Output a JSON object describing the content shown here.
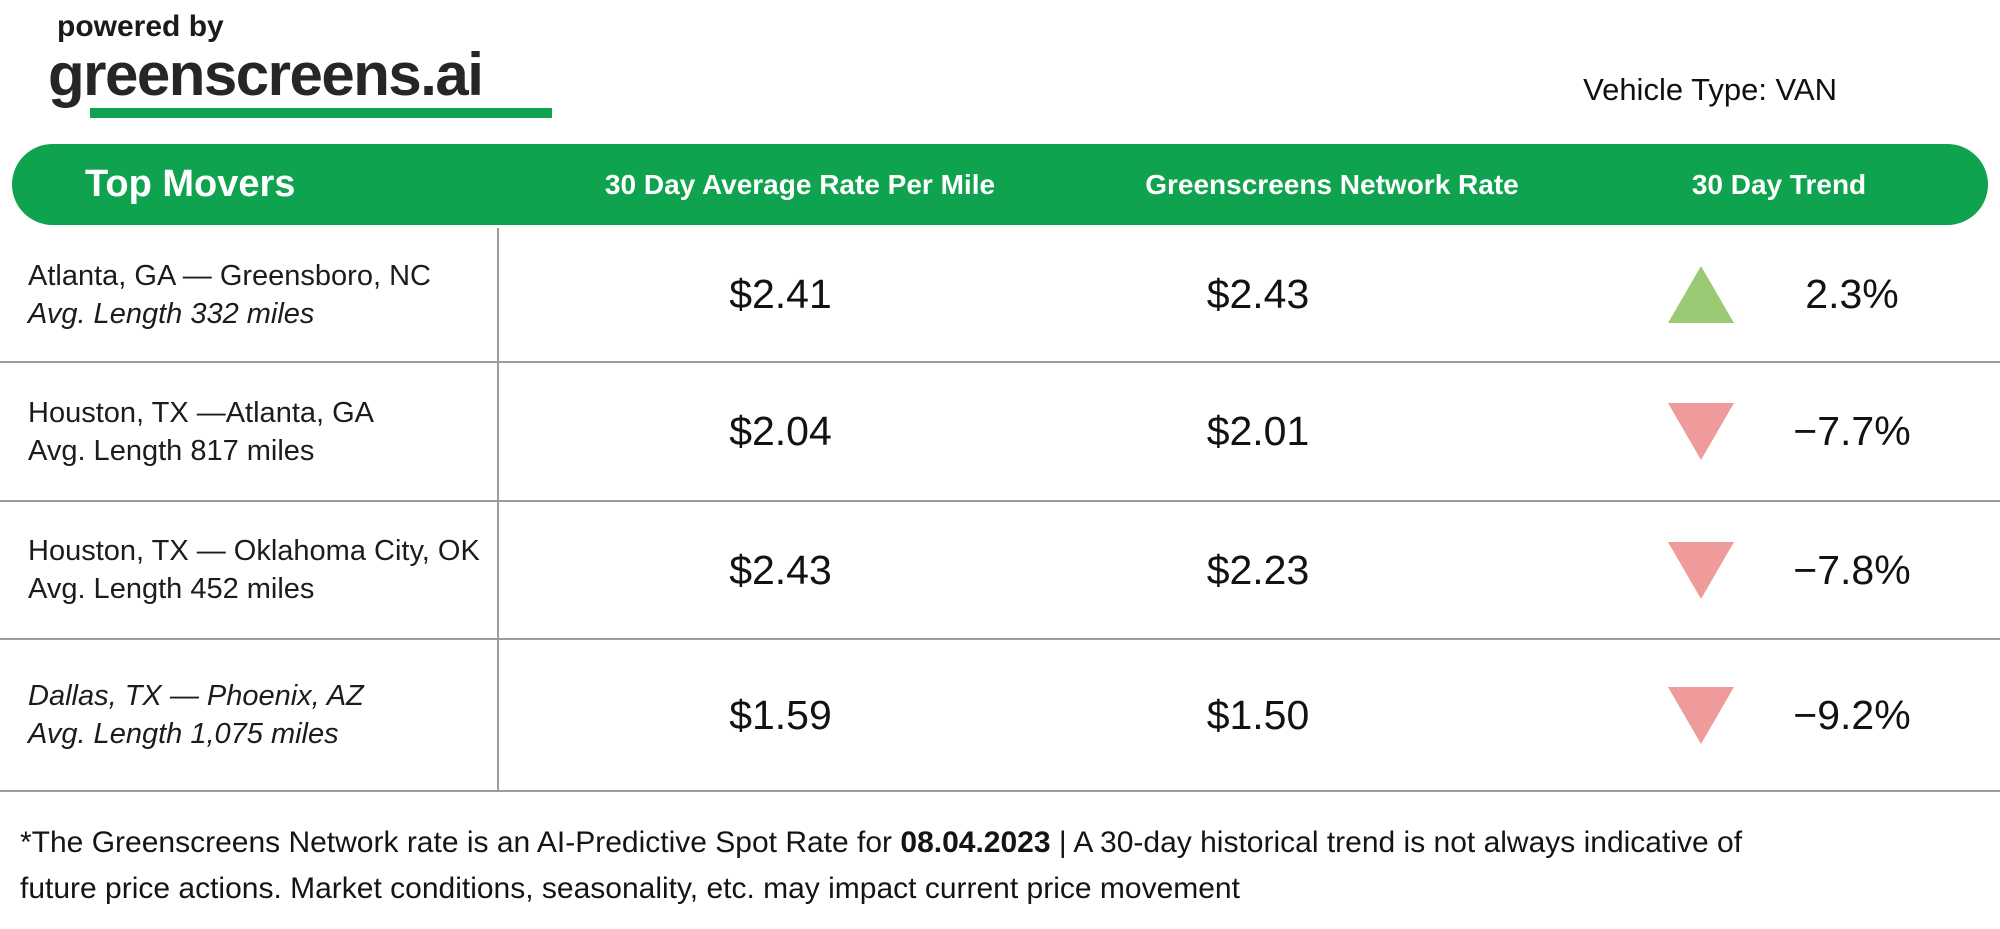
{
  "brand": {
    "powered_by": "powered by",
    "logo": "greenscreens.ai"
  },
  "header": {
    "vehicle_type": "Vehicle Type: VAN"
  },
  "table": {
    "headers": {
      "top_movers": "Top Movers",
      "avg_rate": "30 Day Average Rate Per Mile",
      "network_rate": "Greenscreens Network Rate",
      "trend": "30 Day Trend"
    },
    "rows": [
      {
        "lane": "Atlanta, GA — Greensboro, NC",
        "length": "Avg. Length 332 miles",
        "lane_italic": false,
        "length_italic": true,
        "avg_rate": "$2.41",
        "network_rate": "$2.43",
        "trend_direction": "up",
        "trend_value": "2.3%"
      },
      {
        "lane": "Houston, TX —Atlanta, GA",
        "length": "Avg. Length 817 miles",
        "lane_italic": false,
        "length_italic": false,
        "avg_rate": "$2.04",
        "network_rate": "$2.01",
        "trend_direction": "down",
        "trend_value": "−7.7%"
      },
      {
        "lane": "Houston, TX — Oklahoma City, OK",
        "length": "Avg. Length 452 miles",
        "lane_italic": false,
        "length_italic": false,
        "avg_rate": "$2.43",
        "network_rate": "$2.23",
        "trend_direction": "down",
        "trend_value": "−7.8%"
      },
      {
        "lane": "Dallas, TX — Phoenix, AZ",
        "length": "Avg. Length 1,075 miles",
        "lane_italic": true,
        "length_italic": true,
        "avg_rate": "$1.59",
        "network_rate": "$1.50",
        "trend_direction": "down",
        "trend_value": "−9.2%"
      }
    ]
  },
  "footer": {
    "line1_pre": "*The Greenscreens Network rate is an AI-Predictive Spot Rate for ",
    "date": "08.04.2023",
    "line1_post": " | A 30-day historical trend is not always indicative of",
    "line2": "future price actions. Market conditions, seasonality, etc. may impact current price movement"
  },
  "colors": {
    "brand_green": "#10A34F",
    "up_green": "#9CC973",
    "down_red": "#F09B9B",
    "divider_gray": "#9b9b9b"
  },
  "chart_data": {
    "type": "table",
    "title": "Top Movers",
    "columns": [
      "Lane",
      "30 Day Average Rate Per Mile",
      "Greenscreens Network Rate",
      "30 Day Trend"
    ],
    "rows": [
      [
        "Atlanta, GA — Greensboro, NC (Avg. Length 332 miles)",
        "$2.41",
        "$2.43",
        "+2.3%"
      ],
      [
        "Houston, TX — Atlanta, GA (Avg. Length 817 miles)",
        "$2.04",
        "$2.01",
        "-7.7%"
      ],
      [
        "Houston, TX — Oklahoma City, OK (Avg. Length 452 miles)",
        "$2.43",
        "$2.23",
        "-7.8%"
      ],
      [
        "Dallas, TX — Phoenix, AZ (Avg. Length 1,075 miles)",
        "$1.59",
        "$1.50",
        "-9.2%"
      ]
    ]
  }
}
